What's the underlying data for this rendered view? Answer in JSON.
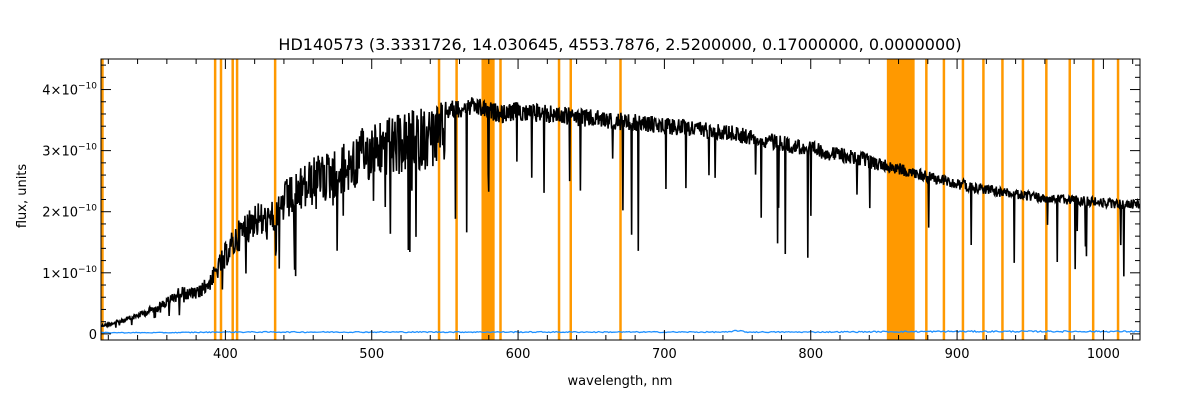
{
  "chart_data": {
    "type": "line",
    "title": "HD140573    (3.3331726, 14.030645, 4553.7876, 2.5200000, 0.17000000, 0.0000000)",
    "xlabel": "wavelength, nm",
    "ylabel": "flux, units",
    "xlim": [
      315,
      1025
    ],
    "ylim": [
      -1e-11,
      4.5e-10
    ],
    "x_ticks": [
      400,
      500,
      600,
      700,
      800,
      900,
      1000
    ],
    "x_tick_labels": [
      "400",
      "500",
      "600",
      "700",
      "800",
      "900",
      "1000"
    ],
    "y_ticks": [
      0,
      1e-10,
      2e-10,
      3e-10,
      4e-10
    ],
    "y_tick_labels": [
      {
        "mantissa": "0",
        "exp": ""
      },
      {
        "mantissa": "1×10",
        "exp": "−10"
      },
      {
        "mantissa": "2×10",
        "exp": "−10"
      },
      {
        "mantissa": "3×10",
        "exp": "−10"
      },
      {
        "mantissa": "4×10",
        "exp": "−10"
      }
    ],
    "grid": false,
    "colors": {
      "spectrum": "#000000",
      "error": "#1e90ff",
      "masked": "#ff9900",
      "axes": "#000000"
    },
    "masked_lines_nm": [
      316,
      393,
      397,
      405,
      408,
      434,
      546,
      558,
      588,
      628,
      636,
      670,
      879,
      891,
      904,
      918,
      931,
      945,
      961,
      977,
      993,
      1010
    ],
    "masked_bands_nm": [
      [
        575,
        584
      ],
      [
        852,
        871
      ]
    ],
    "series": [
      {
        "role": "spectrum",
        "x": [
          315,
          330,
          345,
          360,
          370,
          380,
          390,
          400,
          410,
          420,
          430,
          440,
          450,
          460,
          470,
          480,
          490,
          500,
          510,
          520,
          530,
          540,
          550,
          560,
          570,
          580,
          590,
          600,
          620,
          640,
          660,
          680,
          700,
          720,
          740,
          760,
          780,
          800,
          820,
          840,
          852,
          875,
          900,
          930,
          960,
          990,
          1010,
          1025
        ],
        "y": [
          1.5e-11,
          2.5e-11,
          4e-11,
          6e-11,
          8e-11,
          7.5e-11,
          1e-10,
          1.5e-10,
          1.9e-10,
          2.2e-10,
          2.1e-10,
          2.5e-10,
          2.7e-10,
          2.9e-10,
          3e-10,
          3.1e-10,
          3.3e-10,
          3.5e-10,
          3.55e-10,
          3.6e-10,
          3.7e-10,
          3.75e-10,
          3.8e-10,
          3.85e-10,
          3.88e-10,
          3.8e-10,
          3.75e-10,
          3.8e-10,
          3.75e-10,
          3.7e-10,
          3.65e-10,
          3.6e-10,
          3.55e-10,
          3.5e-10,
          3.45e-10,
          3.35e-10,
          3.25e-10,
          3.15e-10,
          3.05e-10,
          2.95e-10,
          2.85e-10,
          2.7e-10,
          2.55e-10,
          2.4e-10,
          2.3e-10,
          2.25e-10,
          2.2e-10,
          2.2e-10
        ]
      },
      {
        "role": "error",
        "x": [
          315,
          360,
          400,
          500,
          600,
          700,
          745,
          750,
          755,
          800,
          900,
          1000,
          1025
        ],
        "y": [
          2e-12,
          2e-12,
          3e-12,
          3e-12,
          3e-12,
          3e-12,
          3e-12,
          6e-12,
          3e-12,
          3e-12,
          4e-12,
          4e-12,
          4e-12
        ]
      }
    ]
  }
}
